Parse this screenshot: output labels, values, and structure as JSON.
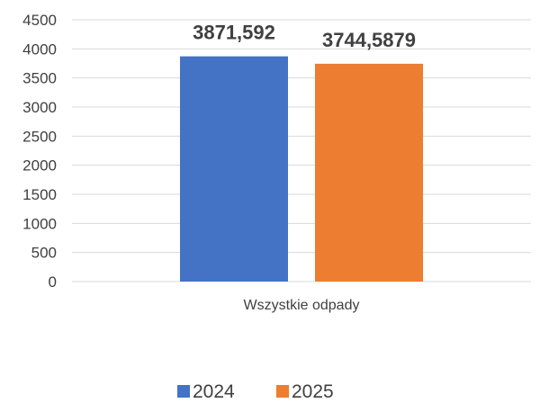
{
  "chart_data": {
    "type": "bar",
    "categories": [
      "Wszystkie odpady"
    ],
    "series": [
      {
        "name": "2024",
        "values": [
          3871.592
        ],
        "label": "3871,592",
        "color": "#4472C4"
      },
      {
        "name": "2025",
        "values": [
          3744.5879
        ],
        "label": "3744,5879",
        "color": "#ED7D31"
      }
    ],
    "ylim": [
      0,
      4500
    ],
    "y_ticks": [
      0,
      500,
      1000,
      1500,
      2000,
      2500,
      3000,
      3500,
      4000,
      4500
    ],
    "grid": true,
    "legend_position": "bottom",
    "data_labels": true
  }
}
